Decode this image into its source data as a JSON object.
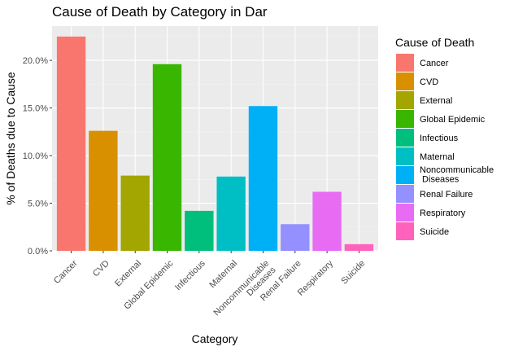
{
  "chart_data": {
    "type": "bar",
    "title": "Cause of Death by Category in Dar",
    "xlabel": "Category",
    "ylabel": "% of Deaths due to Cause",
    "categories": [
      "Cancer",
      "CVD",
      "External",
      "Global Epidemic",
      "Infectious",
      "Maternal",
      "Noncommunicable\nDiseases",
      "Renal Failure",
      "Respiratory",
      "Suicide"
    ],
    "values": [
      0.225,
      0.126,
      0.079,
      0.196,
      0.042,
      0.078,
      0.152,
      0.028,
      0.062,
      0.007
    ],
    "ylim": [
      0,
      0.236
    ],
    "yticks": [
      0,
      0.05,
      0.1,
      0.15,
      0.2
    ],
    "ytick_labels": [
      "0.0%",
      "5.0%",
      "10.0%",
      "15.0%",
      "20.0%"
    ],
    "grid": true,
    "colors": [
      "#F8766D",
      "#D89000",
      "#A3A500",
      "#39B600",
      "#00BF7D",
      "#00BFC4",
      "#00B0F6",
      "#9590FF",
      "#E76BF3",
      "#FF62BC"
    ],
    "panel_background": "#EBEBEB",
    "legend": {
      "title": "Cause of Death",
      "position": "right",
      "entries": [
        "Cancer",
        "CVD",
        "External",
        "Global Epidemic",
        "Infectious",
        "Maternal",
        "Noncommunicable\n Diseases",
        "Renal Failure",
        "Respiratory",
        "Suicide"
      ]
    }
  }
}
